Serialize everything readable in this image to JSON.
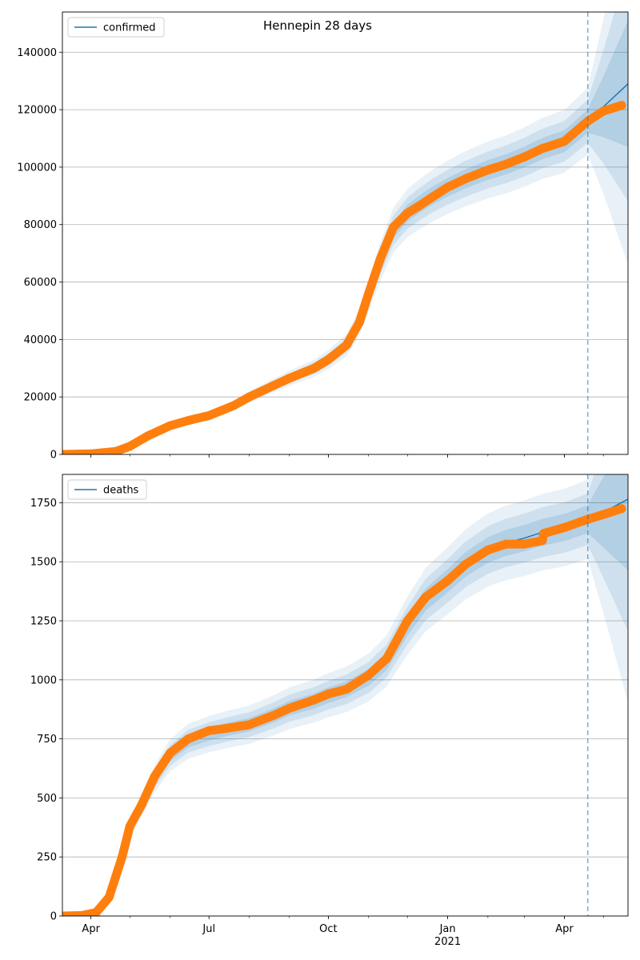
{
  "figure": {
    "suptitle": "Hennepin 28 days"
  },
  "chart_data": [
    {
      "type": "line",
      "title": "",
      "xlabel": "",
      "ylabel": "",
      "xlim": [
        "2020-03-10",
        "2021-05-20"
      ],
      "ylim": [
        0,
        154000
      ],
      "yticks": [
        0,
        20000,
        40000,
        60000,
        80000,
        100000,
        120000,
        140000
      ],
      "xticks": [
        {
          "date": "2020-04-01",
          "label": "Apr"
        },
        {
          "date": "2020-07-01",
          "label": "Jul"
        },
        {
          "date": "2020-10-01",
          "label": "Oct"
        },
        {
          "date": "2021-01-01",
          "label": "Jan",
          "sublabel": "2021"
        },
        {
          "date": "2021-04-01",
          "label": "Apr"
        }
      ],
      "grid": "y",
      "legend_position": "top-left",
      "forecast_start": "2021-04-19",
      "model": {
        "name": "confirmed",
        "color": "#1f77b4",
        "x": [
          "2020-03-10",
          "2020-04-01",
          "2020-04-20",
          "2020-05-01",
          "2020-05-15",
          "2020-06-01",
          "2020-06-15",
          "2020-07-01",
          "2020-07-20",
          "2020-08-01",
          "2020-08-20",
          "2020-09-01",
          "2020-09-20",
          "2020-10-01",
          "2020-10-15",
          "2020-10-25",
          "2020-11-01",
          "2020-11-10",
          "2020-11-20",
          "2020-12-01",
          "2020-12-10",
          "2020-12-20",
          "2021-01-01",
          "2021-01-15",
          "2021-02-01",
          "2021-02-15",
          "2021-03-01",
          "2021-03-15",
          "2021-04-01",
          "2021-04-19",
          "2021-05-01",
          "2021-05-20"
        ],
        "y": [
          0,
          200,
          1000,
          2800,
          6500,
          10000,
          11800,
          13500,
          17000,
          20000,
          24000,
          26500,
          30000,
          33000,
          38000,
          46000,
          55000,
          67000,
          78000,
          84000,
          87000,
          90000,
          93000,
          96000,
          99000,
          101000,
          103500,
          106500,
          109000,
          116000,
          121000,
          129000
        ]
      },
      "series": [
        {
          "name": "",
          "color": "#ff7f0e",
          "x": [
            "2020-03-10",
            "2020-04-01",
            "2020-04-20",
            "2020-05-01",
            "2020-05-15",
            "2020-06-01",
            "2020-06-15",
            "2020-07-01",
            "2020-07-20",
            "2020-08-01",
            "2020-08-20",
            "2020-09-01",
            "2020-09-20",
            "2020-10-01",
            "2020-10-15",
            "2020-10-25",
            "2020-11-01",
            "2020-11-10",
            "2020-11-20",
            "2020-12-01",
            "2020-12-10",
            "2020-12-20",
            "2021-01-01",
            "2021-01-15",
            "2021-02-01",
            "2021-02-15",
            "2021-03-01",
            "2021-03-15",
            "2021-04-01",
            "2021-04-19",
            "2021-05-01",
            "2021-05-15"
          ],
          "y": [
            0,
            200,
            1000,
            2800,
            6500,
            10000,
            11800,
            13500,
            17000,
            20000,
            24000,
            26500,
            30000,
            33000,
            38000,
            46000,
            56000,
            68000,
            79000,
            84000,
            86500,
            89500,
            93000,
            96000,
            99000,
            101000,
            103500,
            106500,
            109000,
            116000,
            119500,
            121500
          ]
        }
      ]
    },
    {
      "type": "line",
      "title": "",
      "xlabel": "",
      "ylabel": "",
      "xlim": [
        "2020-03-10",
        "2021-05-20"
      ],
      "ylim": [
        0,
        1870
      ],
      "yticks": [
        0,
        250,
        500,
        750,
        1000,
        1250,
        1500,
        1750
      ],
      "xticks": [
        {
          "date": "2020-04-01",
          "label": "Apr"
        },
        {
          "date": "2020-07-01",
          "label": "Jul"
        },
        {
          "date": "2020-10-01",
          "label": "Oct"
        },
        {
          "date": "2021-01-01",
          "label": "Jan",
          "sublabel": "2021"
        },
        {
          "date": "2021-04-01",
          "label": "Apr"
        }
      ],
      "grid": "y",
      "legend_position": "top-left",
      "forecast_start": "2021-04-19",
      "model": {
        "name": "deaths",
        "color": "#1f77b4",
        "x": [
          "2020-03-10",
          "2020-03-25",
          "2020-04-05",
          "2020-04-15",
          "2020-04-25",
          "2020-05-01",
          "2020-05-10",
          "2020-05-20",
          "2020-06-01",
          "2020-06-15",
          "2020-07-01",
          "2020-07-15",
          "2020-08-01",
          "2020-08-20",
          "2020-09-01",
          "2020-09-20",
          "2020-10-01",
          "2020-10-15",
          "2020-11-01",
          "2020-11-15",
          "2020-12-01",
          "2020-12-15",
          "2021-01-01",
          "2021-01-15",
          "2021-02-01",
          "2021-02-15",
          "2021-03-01",
          "2021-03-15",
          "2021-04-01",
          "2021-04-19",
          "2021-05-01",
          "2021-05-20"
        ],
        "y": [
          0,
          2,
          15,
          80,
          250,
          370,
          470,
          580,
          680,
          740,
          770,
          790,
          810,
          850,
          880,
          910,
          935,
          960,
          1010,
          1080,
          1230,
          1340,
          1420,
          1490,
          1550,
          1580,
          1600,
          1625,
          1645,
          1680,
          1710,
          1765
        ]
      },
      "series": [
        {
          "name": "",
          "color": "#ff7f0e",
          "x": [
            "2020-03-10",
            "2020-03-25",
            "2020-04-05",
            "2020-04-15",
            "2020-04-25",
            "2020-05-01",
            "2020-05-10",
            "2020-05-20",
            "2020-06-01",
            "2020-06-15",
            "2020-07-01",
            "2020-07-15",
            "2020-08-01",
            "2020-08-20",
            "2020-09-01",
            "2020-09-20",
            "2020-10-01",
            "2020-10-15",
            "2020-11-01",
            "2020-11-15",
            "2020-12-01",
            "2020-12-15",
            "2021-01-01",
            "2021-01-15",
            "2021-02-01",
            "2021-02-15",
            "2021-03-01",
            "2021-03-15",
            "2021-03-16",
            "2021-04-01",
            "2021-04-19",
            "2021-05-01",
            "2021-05-15"
          ],
          "y": [
            0,
            2,
            15,
            80,
            250,
            380,
            470,
            590,
            690,
            750,
            785,
            795,
            810,
            850,
            880,
            915,
            940,
            960,
            1020,
            1090,
            1250,
            1350,
            1420,
            1490,
            1550,
            1575,
            1575,
            1590,
            1620,
            1645,
            1680,
            1700,
            1725
          ]
        }
      ]
    }
  ]
}
